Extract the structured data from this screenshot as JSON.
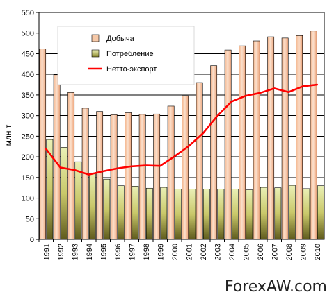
{
  "chart_data": {
    "type": "bar",
    "ylabel": "млн т",
    "ylim": [
      0,
      550
    ],
    "yticks": [
      0,
      50,
      100,
      150,
      200,
      250,
      300,
      350,
      400,
      450,
      500,
      550
    ],
    "categories": [
      "1991",
      "1992",
      "1993",
      "1994",
      "1995",
      "1996",
      "1997",
      "1998",
      "1999",
      "2000",
      "2001",
      "2002",
      "2003",
      "2004",
      "2005",
      "2006",
      "2007",
      "2008",
      "2009",
      "2010"
    ],
    "grid": true,
    "legend": "top-center",
    "series": [
      {
        "name": "Добыча",
        "type": "bar",
        "color": "#f6c9a8",
        "values": [
          462,
          399,
          356,
          318,
          310,
          302,
          307,
          303,
          304,
          323,
          348,
          380,
          421,
          459,
          469,
          481,
          491,
          488,
          494,
          505
        ]
      },
      {
        "name": "Потребление",
        "type": "bar",
        "color": "#d6d48a",
        "values": [
          242,
          223,
          188,
          161,
          146,
          130,
          129,
          124,
          126,
          122,
          122,
          122,
          122,
          122,
          120,
          126,
          125,
          131,
          123,
          130
        ]
      },
      {
        "name": "Нетто-экспорт",
        "type": "line",
        "color": "#ff0000",
        "values": [
          219,
          174,
          168,
          157,
          165,
          172,
          177,
          179,
          178,
          201,
          226,
          257,
          299,
          334,
          348,
          355,
          366,
          357,
          371,
          375
        ]
      }
    ]
  },
  "watermark": "ForexAW.com"
}
